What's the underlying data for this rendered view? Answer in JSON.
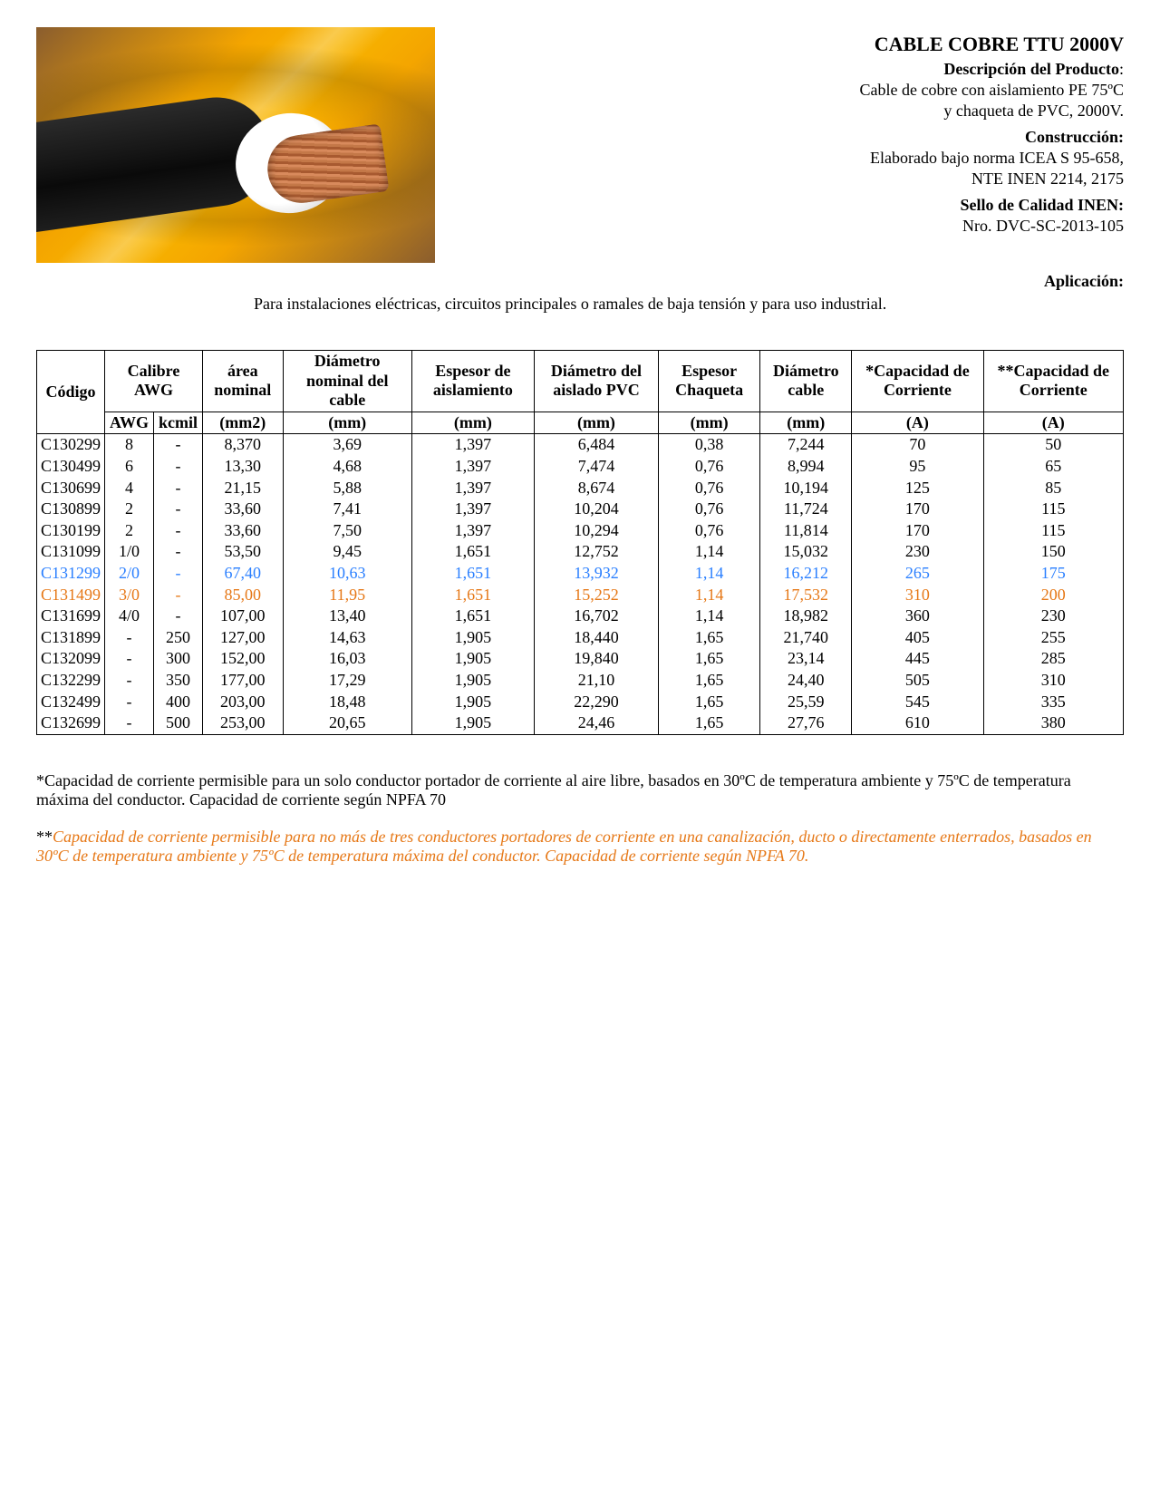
{
  "header": {
    "title": "CABLE COBRE TTU 2000V",
    "desc_label": "Descripción del Producto",
    "desc_line1": "Cable de cobre con aislamiento PE 75ºC",
    "desc_line2": "y chaqueta de PVC, 2000V.",
    "constr_label": "Construcción:",
    "constr_line1": "Elaborado bajo norma ICEA S 95-658,",
    "constr_line2": "NTE INEN 2214, 2175",
    "sello_label": "Sello de Calidad INEN:",
    "sello_line1": "Nro. DVC-SC-2013-105",
    "app_label": "Aplicación:",
    "app_text": "Para instalaciones eléctricas, circuitos principales o ramales de baja tensión y para uso industrial."
  },
  "table": {
    "head1": {
      "codigo": "Código",
      "calibre": "Calibre AWG",
      "area": "área nominal",
      "diam_nom": "Diámetro nominal del cable",
      "espesor_ais": "Espesor de aislamiento",
      "diam_aisl": "Diámetro del aislado PVC",
      "espesor_chaq": "Espesor Chaqueta",
      "diam_cable": "Diámetro cable",
      "cap1": "*Capacidad de Corriente",
      "cap2": "**Capacidad de Corriente"
    },
    "head2": {
      "awg": "AWG",
      "kcmil": "kcmil",
      "mm2": "(mm2)",
      "mm": "(mm)",
      "a": "(A)"
    },
    "rows": [
      {
        "c": "C130299",
        "awg": "8",
        "kcmil": "-",
        "area": "8,370",
        "dn": "3,69",
        "ea": "1,397",
        "da": "6,484",
        "ec": "0,38",
        "dc": "7,244",
        "c1": "70",
        "c2": "50",
        "cls": ""
      },
      {
        "c": "C130499",
        "awg": "6",
        "kcmil": "-",
        "area": "13,30",
        "dn": "4,68",
        "ea": "1,397",
        "da": "7,474",
        "ec": "0,76",
        "dc": "8,994",
        "c1": "95",
        "c2": "65",
        "cls": ""
      },
      {
        "c": "C130699",
        "awg": "4",
        "kcmil": "-",
        "area": "21,15",
        "dn": "5,88",
        "ea": "1,397",
        "da": "8,674",
        "ec": "0,76",
        "dc": "10,194",
        "c1": "125",
        "c2": "85",
        "cls": ""
      },
      {
        "c": "C130899",
        "awg": "2",
        "kcmil": "-",
        "area": "33,60",
        "dn": "7,41",
        "ea": "1,397",
        "da": "10,204",
        "ec": "0,76",
        "dc": "11,724",
        "c1": "170",
        "c2": "115",
        "cls": ""
      },
      {
        "c": "C130199",
        "awg": "2",
        "kcmil": "-",
        "area": "33,60",
        "dn": "7,50",
        "ea": "1,397",
        "da": "10,294",
        "ec": "0,76",
        "dc": "11,814",
        "c1": "170",
        "c2": "115",
        "cls": ""
      },
      {
        "c": "C131099",
        "awg": "1/0",
        "kcmil": "-",
        "area": "53,50",
        "dn": "9,45",
        "ea": "1,651",
        "da": "12,752",
        "ec": "1,14",
        "dc": "15,032",
        "c1": "230",
        "c2": "150",
        "cls": ""
      },
      {
        "c": "C131299",
        "awg": "2/0",
        "kcmil": "-",
        "area": "67,40",
        "dn": "10,63",
        "ea": "1,651",
        "da": "13,932",
        "ec": "1,14",
        "dc": "16,212",
        "c1": "265",
        "c2": "175",
        "cls": "blue"
      },
      {
        "c": "C131499",
        "awg": "3/0",
        "kcmil": "-",
        "area": "85,00",
        "dn": "11,95",
        "ea": "1,651",
        "da": "15,252",
        "ec": "1,14",
        "dc": "17,532",
        "c1": "310",
        "c2": "200",
        "cls": "orange"
      },
      {
        "c": "C131699",
        "awg": "4/0",
        "kcmil": "-",
        "area": "107,00",
        "dn": "13,40",
        "ea": "1,651",
        "da": "16,702",
        "ec": "1,14",
        "dc": "18,982",
        "c1": "360",
        "c2": "230",
        "cls": ""
      },
      {
        "c": "C131899",
        "awg": "-",
        "kcmil": "250",
        "area": "127,00",
        "dn": "14,63",
        "ea": "1,905",
        "da": "18,440",
        "ec": "1,65",
        "dc": "21,740",
        "c1": "405",
        "c2": "255",
        "cls": ""
      },
      {
        "c": "C132099",
        "awg": "-",
        "kcmil": "300",
        "area": "152,00",
        "dn": "16,03",
        "ea": "1,905",
        "da": "19,840",
        "ec": "1,65",
        "dc": "23,14",
        "c1": "445",
        "c2": "285",
        "cls": ""
      },
      {
        "c": "C132299",
        "awg": "-",
        "kcmil": "350",
        "area": "177,00",
        "dn": "17,29",
        "ea": "1,905",
        "da": "21,10",
        "ec": "1,65",
        "dc": "24,40",
        "c1": "505",
        "c2": "310",
        "cls": ""
      },
      {
        "c": "C132499",
        "awg": "-",
        "kcmil": "400",
        "area": "203,00",
        "dn": "18,48",
        "ea": "1,905",
        "da": "22,290",
        "ec": "1,65",
        "dc": "25,59",
        "c1": "545",
        "c2": "335",
        "cls": ""
      },
      {
        "c": "C132699",
        "awg": "-",
        "kcmil": "500",
        "area": "253,00",
        "dn": "20,65",
        "ea": "1,905",
        "da": "24,46",
        "ec": "1,65",
        "dc": "27,76",
        "c1": "610",
        "c2": "380",
        "cls": ""
      }
    ]
  },
  "foot1": "*Capacidad de corriente permisible para un solo conductor portador de corriente al aire libre, basados en 30ºC de temperatura ambiente y 75ºC de temperatura máxima del conductor. Capacidad de corriente según NPFA 70",
  "foot2_stars": "**",
  "foot2": "Capacidad de corriente permisible para no más de tres conductores portadores de corriente en una canalización, ducto o directamente enterrados, basados en 30ºC de temperatura ambiente y 75ºC de temperatura máxima del conductor. Capacidad de corriente según NPFA 70."
}
